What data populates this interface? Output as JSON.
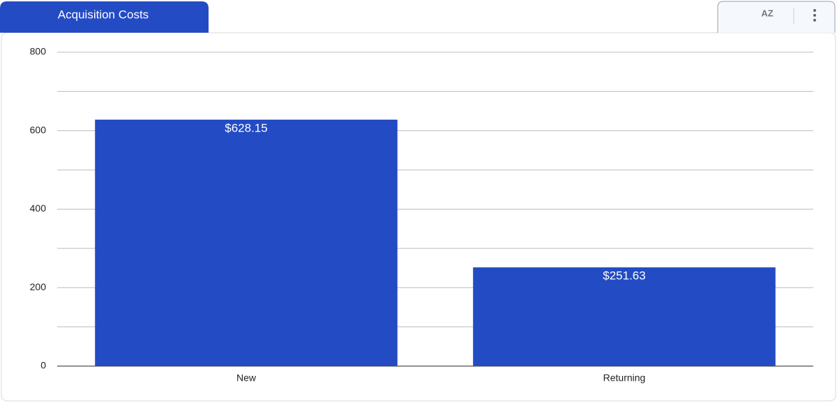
{
  "chart_data": {
    "type": "bar",
    "title": "Acquisition Costs",
    "sort_label": "AZ",
    "categories": [
      "New",
      "Returning"
    ],
    "values": [
      628.15,
      251.63
    ],
    "value_labels": [
      "$628.15",
      "$251.63"
    ],
    "color": "#234bc4",
    "ylim": [
      0,
      800
    ],
    "yticks": [
      0,
      200,
      400,
      600,
      800
    ],
    "minor_yticks": [
      100,
      300,
      500,
      700
    ],
    "grid": true
  }
}
